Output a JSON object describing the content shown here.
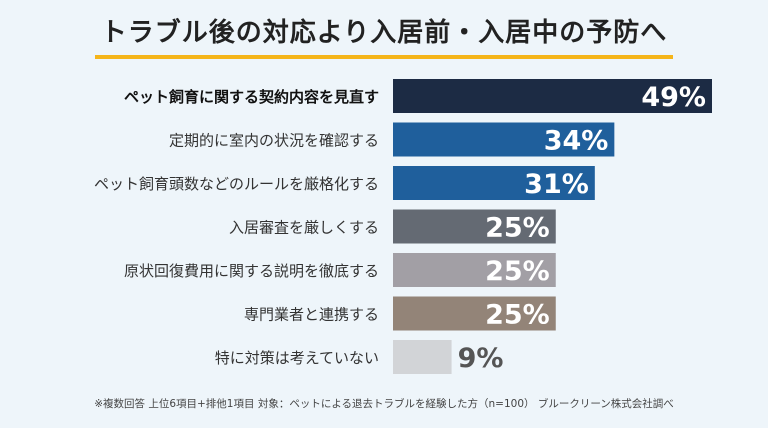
{
  "title": "トラブル後の対応より入居前・入居中の予防へ",
  "chart_data": {
    "type": "bar",
    "orientation": "horizontal",
    "categories": [
      "ペット飼育に関する契約内容を見直す",
      "定期的に室内の状況を確認する",
      "ペット飼育頭数などのルールを厳格化する",
      "入居審査を厳しくする",
      "原状回復費用に関する説明を徹底する",
      "専門業者と連携する",
      "特に対策は考えていない"
    ],
    "values": [
      49,
      34,
      31,
      25,
      25,
      25,
      9
    ],
    "value_labels": [
      "49%",
      "34%",
      "31%",
      "25%",
      "25%",
      "25%",
      "9%"
    ],
    "bar_colors": [
      "#1c2b44",
      "#1f5f9c",
      "#1f5f9c",
      "#646a73",
      "#a29fa5",
      "#938478",
      "#d2d4d7"
    ],
    "label_colors": [
      "#ffffff",
      "#ffffff",
      "#ffffff",
      "#ffffff",
      "#ffffff",
      "#ffffff",
      "#555555"
    ],
    "highlight_index": 0,
    "xlim": [
      0,
      49
    ]
  },
  "footnote": "※複数回答 上位6項目+排他1項目 対象：ペットによる退去トラブルを経験した方（n=100） ブルークリーン株式会社調べ"
}
